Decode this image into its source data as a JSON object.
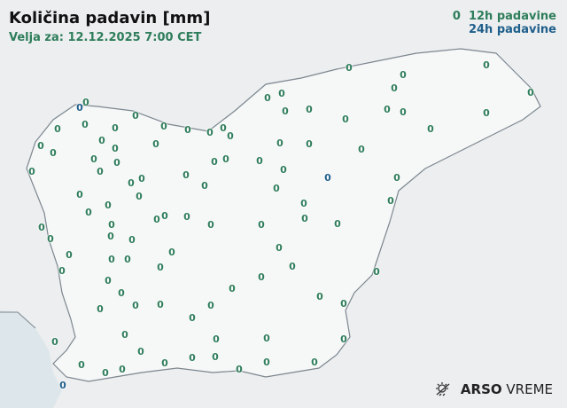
{
  "header": {
    "title": "Količina padavin [mm]",
    "subtitle": "Velja za: 12.12.2025 7:00 CET"
  },
  "legend": {
    "sample_value": "0",
    "label_12h": "12h padavine",
    "label_24h": "24h padavine",
    "color_12h": "#2e7d5b",
    "color_24h": "#1f5f8b"
  },
  "stations_12h": [
    "0",
    "0",
    "0",
    "0",
    "0",
    "0",
    "0",
    "0",
    "0",
    "0",
    "0",
    "0",
    "0",
    "0",
    "0",
    "0",
    "0",
    "0",
    "0",
    "0",
    "0",
    "0",
    "0",
    "0",
    "0",
    "0",
    "0",
    "0",
    "0",
    "0",
    "0",
    "0",
    "0",
    "0",
    "0",
    "0",
    "0",
    "0",
    "0",
    "0",
    "0",
    "0",
    "0",
    "0",
    "0",
    "0",
    "0",
    "0",
    "0",
    "0",
    "0",
    "0",
    "0",
    "0",
    "0",
    "0",
    "0",
    "0",
    "0",
    "0",
    "0",
    "0",
    "0",
    "0",
    "0",
    "0",
    "0",
    "0",
    "0",
    "0",
    "0",
    "0",
    "0",
    "0",
    "0",
    "0",
    "0",
    "0",
    "0",
    "0",
    "0",
    "0",
    "0",
    "0",
    "0",
    "0",
    "0",
    "0",
    "0",
    "0",
    "0",
    "0",
    "0",
    "0",
    "0",
    "0",
    "0",
    "0",
    "0"
  ],
  "stations_24h": [
    "0",
    "0",
    "0"
  ],
  "logo": {
    "brand": "ARSO",
    "product": "VREME",
    "icon": "sun-cloud-icon"
  }
}
